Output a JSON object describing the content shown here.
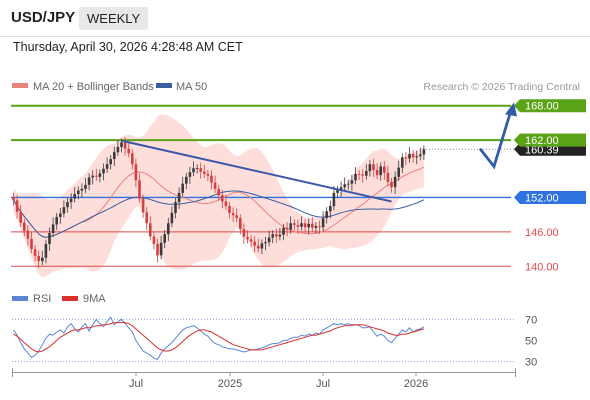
{
  "header": {
    "symbol": "USD/JPY",
    "timeframe": "WEEKLY",
    "datetime": "Thursday, April 30, 2026 4:28:48 AM CET",
    "credit": "Research © 2026 Trading Central"
  },
  "colors": {
    "resistance": "#5aa317",
    "support": "#e04a4a",
    "pivot": "#2f73e0",
    "trendline": "#3b57a8",
    "bollinger": "#fdd8d5",
    "ma20": "#e8827c",
    "ma50": "#3a5fa0",
    "rsi": "#5a86d6",
    "rsi_ma": "#d9302c",
    "candle_up": "#3b3b3b",
    "candle_down": "#d73e3e",
    "arrow": "#2f5ea6"
  },
  "legend": {
    "ma20_label": "MA 20 + Bollinger Bands",
    "ma50_label": "MA 50",
    "rsi_label": "RSI",
    "rsi_ma_label": "9MA"
  },
  "chart_data": [
    {
      "type": "candlestick",
      "title": "",
      "x_tick_labels": [
        "Jul",
        "2025",
        "Jul",
        "2026"
      ],
      "ylim": [
        139,
        169
      ],
      "last_price_label": "160.39",
      "levels": [
        {
          "value": 168.0,
          "label": "168.00",
          "kind": "resistance"
        },
        {
          "value": 162.0,
          "label": "162.00",
          "kind": "resistance"
        },
        {
          "value": 152.0,
          "label": "152.00",
          "kind": "pivot"
        },
        {
          "value": 146.0,
          "label": "146.00",
          "kind": "support"
        },
        {
          "value": 140.0,
          "label": "140.00",
          "kind": "support"
        }
      ],
      "trendline": {
        "from_week": 30,
        "from_value": 161.9,
        "to_week": 105,
        "to_value": 151.3
      },
      "forecast_path": [
        {
          "step": 0,
          "value": 160.5
        },
        {
          "step": 1,
          "value": 157.4
        },
        {
          "step": 2,
          "value": 167.2
        }
      ],
      "close_series_weeks_0_to_114": [
        151.5,
        149.5,
        147.6,
        146.2,
        144.8,
        143.0,
        141.8,
        140.9,
        141.5,
        143.9,
        145.8,
        147.3,
        148.6,
        149.2,
        150.3,
        151.2,
        151.8,
        152.6,
        153.2,
        153.5,
        154.2,
        155.5,
        155.8,
        155.6,
        156.2,
        157.0,
        157.8,
        158.7,
        159.9,
        160.8,
        161.6,
        160.5,
        159.7,
        157.8,
        155.0,
        151.8,
        149.4,
        147.5,
        145.2,
        143.9,
        141.9,
        144.1,
        145.6,
        147.5,
        149.3,
        151.2,
        152.8,
        154.4,
        155.6,
        156.4,
        157.1,
        157.1,
        156.5,
        156.1,
        155.8,
        154.6,
        153.5,
        152.4,
        151.3,
        150.5,
        149.3,
        148.9,
        148.4,
        146.5,
        145.1,
        144.7,
        144.3,
        143.6,
        143.1,
        144.0,
        144.2,
        145.0,
        145.6,
        145.2,
        145.5,
        146.7,
        146.4,
        147.5,
        147.2,
        146.9,
        147.5,
        146.8,
        147.4,
        146.7,
        147.0,
        146.8,
        148.4,
        149.6,
        150.5,
        152.8,
        153.3,
        153.8,
        154.3,
        154.4,
        155.0,
        156.1,
        156.0,
        155.8,
        156.6,
        157.8,
        156.8,
        155.9,
        157.4,
        156.3,
        154.7,
        153.8,
        155.6,
        157.2,
        159.0,
        158.8,
        159.6,
        159.0,
        159.2,
        159.5,
        160.4
      ]
    },
    {
      "type": "line",
      "title": "RSI",
      "ylim": [
        20,
        78
      ],
      "y_ticks": [
        30,
        50,
        70
      ],
      "y_tick_labels": [
        "30",
        "50",
        "70"
      ],
      "reference_lines": [
        70,
        30
      ],
      "series": [
        {
          "name": "RSI",
          "values": [
            60,
            55,
            48,
            42,
            38,
            34,
            36,
            40,
            46,
            52,
            56,
            55,
            58,
            60,
            57,
            63,
            66,
            61,
            58,
            63,
            66,
            59,
            65,
            70,
            66,
            63,
            68,
            72,
            65,
            68,
            70,
            66,
            62,
            58,
            50,
            45,
            40,
            38,
            36,
            33,
            32,
            38,
            42,
            45,
            48,
            52,
            56,
            60,
            62,
            63,
            64,
            62,
            59,
            56,
            54,
            50,
            47,
            46,
            44,
            43,
            42,
            42,
            41,
            40,
            39,
            40,
            41,
            41,
            42,
            43,
            44,
            46,
            47,
            47,
            48,
            50,
            50,
            52,
            53,
            53,
            55,
            54,
            56,
            55,
            57,
            56,
            60,
            62,
            64,
            66,
            65,
            66,
            65,
            66,
            64,
            65,
            64,
            62,
            62,
            63,
            58,
            54,
            56,
            54,
            50,
            48,
            52,
            56,
            60,
            58,
            62,
            58,
            60,
            61,
            63
          ]
        },
        {
          "name": "9MA",
          "values": [
            56,
            54,
            51,
            48,
            45,
            42,
            40,
            39,
            40,
            42,
            44,
            47,
            50,
            53,
            55,
            57,
            59,
            60,
            60,
            61,
            62,
            62,
            63,
            64,
            64,
            65,
            65,
            66,
            67,
            67,
            67,
            67,
            66,
            64,
            61,
            58,
            55,
            52,
            49,
            46,
            43,
            41,
            40,
            40,
            41,
            43,
            46,
            49,
            52,
            55,
            57,
            59,
            60,
            60,
            59,
            58,
            56,
            54,
            52,
            50,
            48,
            46,
            45,
            44,
            43,
            42,
            41,
            41,
            41,
            41,
            42,
            43,
            44,
            45,
            46,
            47,
            48,
            49,
            50,
            51,
            52,
            53,
            54,
            55,
            55,
            56,
            57,
            58,
            59,
            61,
            62,
            63,
            64,
            64,
            65,
            65,
            65,
            65,
            64,
            63,
            62,
            61,
            60,
            59,
            57,
            56,
            55,
            55,
            56,
            56,
            57,
            58,
            59,
            60,
            61
          ]
        }
      ]
    }
  ]
}
